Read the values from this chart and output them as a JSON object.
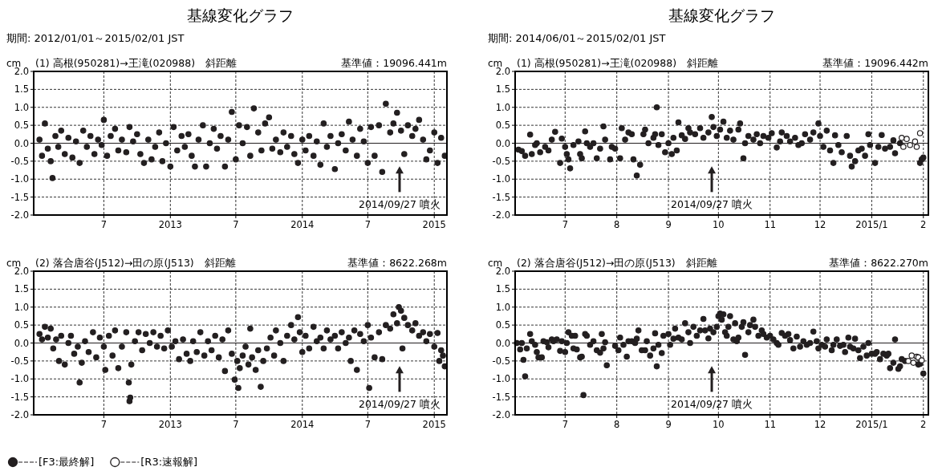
{
  "chart_data": [
    {
      "type": "scatter",
      "title": "基線変化グラフ",
      "subtitle": "期間: 2012/01/01～2015/02/01 JST",
      "ylabel": "cm",
      "annotations": [
        "(1) 高根(950281)→王滝(020988)　斜距離",
        "基準値：19096.441m"
      ],
      "xlim": [
        "2011-12-20",
        "2015-02-05"
      ],
      "xticks": [
        {
          "value": "2012-07-01",
          "label": "7"
        },
        {
          "value": "2013-01-01",
          "label": "2013"
        },
        {
          "value": "2013-07-01",
          "label": "7"
        },
        {
          "value": "2014-01-01",
          "label": "2014"
        },
        {
          "value": "2014-07-01",
          "label": "7"
        },
        {
          "value": "2015-01-01",
          "label": "2015"
        }
      ],
      "ylim": [
        -2,
        2
      ],
      "yticks": [
        {
          "value": 2,
          "label": "2.0"
        },
        {
          "value": 1.5,
          "label": "1.5"
        },
        {
          "value": 1,
          "label": "1.0"
        },
        {
          "value": 0.5,
          "label": "0.5"
        },
        {
          "value": 0,
          "label": "0.0"
        },
        {
          "value": -0.5,
          "label": "-0.5"
        },
        {
          "value": -1,
          "label": "-1.0"
        },
        {
          "value": -1.5,
          "label": "-1.5"
        },
        {
          "value": -2,
          "label": "-2.0"
        }
      ],
      "grid": true,
      "marker": "circle",
      "ref_lines": [
        {
          "axis": "y",
          "value": 0,
          "color": "#231f20"
        },
        {
          "axis": "x",
          "value": "2014-09-27",
          "label": "2014/09/27 噴火"
        }
      ],
      "series": [
        {
          "color": "#231f20",
          "x": [
            "2012-01-05",
            "2012-01-12",
            "2012-01-20",
            "2012-01-28",
            "2012-02-05",
            "2012-02-10",
            "2012-02-18",
            "2012-02-26",
            "2012-03-05",
            "2012-03-15",
            "2012-03-25",
            "2012-04-05",
            "2012-04-15",
            "2012-04-25",
            "2012-05-05",
            "2012-05-15",
            "2012-05-25",
            "2012-06-05",
            "2012-06-15",
            "2012-06-25",
            "2012-07-01",
            "2012-07-10",
            "2012-07-20",
            "2012-08-01",
            "2012-08-10",
            "2012-08-20",
            "2012-09-01",
            "2012-09-10",
            "2012-09-20",
            "2012-10-01",
            "2012-10-10",
            "2012-10-20",
            "2012-11-01",
            "2012-11-10",
            "2012-11-20",
            "2012-12-01",
            "2012-12-10",
            "2012-12-20",
            "2013-01-01",
            "2013-01-10",
            "2013-01-20",
            "2013-02-01",
            "2013-02-10",
            "2013-02-20",
            "2013-03-01",
            "2013-03-10",
            "2013-03-20",
            "2013-04-01",
            "2013-04-10",
            "2013-04-20",
            "2013-05-01",
            "2013-05-10",
            "2013-05-20",
            "2013-06-01",
            "2013-06-10",
            "2013-06-20",
            "2013-07-01",
            "2013-07-10",
            "2013-07-20",
            "2013-08-01",
            "2013-08-10",
            "2013-08-20",
            "2013-09-01",
            "2013-09-10",
            "2013-09-20",
            "2013-10-01",
            "2013-10-10",
            "2013-10-20",
            "2013-11-01",
            "2013-11-10",
            "2013-11-20",
            "2013-12-01",
            "2013-12-10",
            "2013-12-20",
            "2014-01-01",
            "2014-01-10",
            "2014-01-20",
            "2014-02-01",
            "2014-02-10",
            "2014-02-20",
            "2014-03-01",
            "2014-03-10",
            "2014-03-20",
            "2014-04-01",
            "2014-04-10",
            "2014-04-20",
            "2014-05-01",
            "2014-05-10",
            "2014-05-20",
            "2014-06-01",
            "2014-06-10",
            "2014-06-20",
            "2014-07-01",
            "2014-07-10",
            "2014-07-20",
            "2014-08-01",
            "2014-08-10",
            "2014-08-20",
            "2014-09-01",
            "2014-09-10",
            "2014-09-20",
            "2014-10-01",
            "2014-10-10",
            "2014-10-20",
            "2014-11-01",
            "2014-11-10",
            "2014-11-20",
            "2014-12-01",
            "2014-12-10",
            "2014-12-20",
            "2015-01-01",
            "2015-01-10",
            "2015-01-20",
            "2015-01-30"
          ],
          "values": [
            0.1,
            -0.35,
            0.55,
            -0.15,
            -0.5,
            -0.97,
            0.2,
            -0.1,
            0.35,
            -0.3,
            0.15,
            -0.4,
            0.05,
            -0.55,
            0.35,
            -0.1,
            0.2,
            -0.3,
            0.1,
            -0.05,
            0.65,
            -0.35,
            0.2,
            0.4,
            -0.2,
            0.1,
            -0.25,
            0.45,
            0.05,
            0.25,
            -0.3,
            -0.55,
            0.1,
            -0.45,
            -0.1,
            0.3,
            -0.5,
            0.0,
            -0.65,
            0.45,
            -0.2,
            0.2,
            -0.1,
            0.25,
            -0.35,
            -0.65,
            0.1,
            0.5,
            -0.65,
            0.0,
            0.4,
            -0.15,
            0.2,
            -0.65,
            0.1,
            0.87,
            -0.45,
            0.5,
            0.0,
            0.45,
            -0.35,
            0.97,
            0.3,
            -0.2,
            0.55,
            0.72,
            -0.15,
            0.1,
            -0.25,
            0.3,
            -0.1,
            0.2,
            -0.3,
            -0.55,
            0.1,
            -0.2,
            0.2,
            -0.35,
            0.05,
            -0.6,
            0.55,
            -0.1,
            0.2,
            -0.72,
            0.0,
            0.25,
            -0.2,
            0.6,
            0.1,
            -0.35,
            0.4,
            0.05,
            -0.55,
            0.45,
            -0.35,
            0.5,
            -0.8,
            1.1,
            0.3,
            0.55,
            0.85,
            0.35,
            -0.3,
            0.5,
            0.2,
            0.4,
            0.65,
            0.1,
            -0.45,
            -0.2,
            0.3,
            -0.55,
            0.15,
            -0.35
          ]
        }
      ]
    },
    {
      "type": "scatter",
      "title": "基線変化グラフ",
      "subtitle": "期間: 2014/06/01～2015/02/01 JST",
      "ylabel": "cm",
      "annotations": [
        "(1) 高根(950281)→王滝(020988)　斜距離",
        "基準値：19096.442m"
      ],
      "xlim": [
        "2014-06-01",
        "2015-02-04"
      ],
      "xticks": [
        {
          "value": "2014-07-01",
          "label": "7"
        },
        {
          "value": "2014-08-01",
          "label": "8"
        },
        {
          "value": "2014-09-01",
          "label": "9"
        },
        {
          "value": "2014-10-01",
          "label": "10"
        },
        {
          "value": "2014-11-01",
          "label": "11"
        },
        {
          "value": "2014-12-01",
          "label": "12"
        },
        {
          "value": "2015-01-01",
          "label": "2015/1"
        },
        {
          "value": "2015-02-01",
          "label": "2"
        }
      ],
      "ylim": [
        -2,
        2
      ],
      "yticks": [
        {
          "value": 2,
          "label": "2.0"
        },
        {
          "value": 1.5,
          "label": "1.5"
        },
        {
          "value": 1,
          "label": "1.0"
        },
        {
          "value": 0.5,
          "label": "0.5"
        },
        {
          "value": 0,
          "label": "0.0"
        },
        {
          "value": -0.5,
          "label": "-0.5"
        },
        {
          "value": -1,
          "label": "-1.0"
        },
        {
          "value": -1.5,
          "label": "-1.5"
        },
        {
          "value": -2,
          "label": "-2.0"
        }
      ],
      "grid": true,
      "marker": "circle",
      "ref_lines": [
        {
          "axis": "y",
          "value": 0,
          "color": "#231f20"
        },
        {
          "axis": "x",
          "value": "2014-09-27",
          "label": "2014/09/27 噴火"
        }
      ],
      "series": [
        {
          "color": "#231f20",
          "x": [
            "2014-06-03",
            "2014-06-05",
            "2014-06-07",
            "2014-06-10",
            "2014-06-11",
            "2014-06-13",
            "2014-06-14",
            "2014-06-16",
            "2014-06-19",
            "2014-06-21",
            "2014-06-23",
            "2014-06-25",
            "2014-06-28",
            "2014-06-29",
            "2014-07-01",
            "2014-07-02",
            "2014-07-03",
            "2014-07-04",
            "2014-07-06",
            "2014-07-09",
            "2014-07-10",
            "2014-07-11",
            "2014-07-13",
            "2014-07-14",
            "2014-07-16",
            "2014-07-18",
            "2014-07-20",
            "2014-07-22",
            "2014-07-24",
            "2014-07-25",
            "2014-07-28",
            "2014-07-29",
            "2014-07-31",
            "2014-08-03",
            "2014-08-04",
            "2014-08-06",
            "2014-08-08",
            "2014-08-10",
            "2014-08-11",
            "2014-08-13",
            "2014-08-15",
            "2014-08-17",
            "2014-08-18",
            "2014-08-20",
            "2014-08-23",
            "2014-08-24",
            "2014-08-25",
            "2014-08-26",
            "2014-08-28",
            "2014-08-30",
            "2014-09-01",
            "2014-09-03",
            "2014-09-04",
            "2014-09-06",
            "2014-09-07",
            "2014-09-09",
            "2014-09-11",
            "2014-09-13",
            "2014-09-14",
            "2014-09-17",
            "2014-09-20",
            "2014-09-22",
            "2014-09-25",
            "2014-09-27",
            "2014-09-28",
            "2014-09-30",
            "2014-10-02",
            "2014-10-04",
            "2014-10-06",
            "2014-10-08",
            "2014-10-10",
            "2014-10-13",
            "2014-10-14",
            "2014-10-16",
            "2014-10-17",
            "2014-10-19",
            "2014-10-22",
            "2014-10-24",
            "2014-10-26",
            "2014-10-28",
            "2014-10-31",
            "2014-11-02",
            "2014-11-05",
            "2014-11-07",
            "2014-11-08",
            "2014-11-11",
            "2014-11-13",
            "2014-11-16",
            "2014-11-18",
            "2014-11-20",
            "2014-11-22",
            "2014-11-25",
            "2014-11-27",
            "2014-11-30",
            "2014-12-01",
            "2014-12-03",
            "2014-12-05",
            "2014-12-07",
            "2014-12-09",
            "2014-12-10",
            "2014-12-12",
            "2014-12-14",
            "2014-12-17",
            "2014-12-19",
            "2014-12-20",
            "2014-12-22",
            "2014-12-24",
            "2014-12-26",
            "2014-12-28",
            "2014-12-30",
            "2014-12-31",
            "2015-01-03",
            "2015-01-05",
            "2015-01-07",
            "2015-01-09",
            "2015-01-12",
            "2015-01-14",
            "2015-01-15",
            "2015-01-18",
            "2015-01-30",
            "2015-01-31",
            "2015-02-01"
          ],
          "values": [
            -0.18,
            -0.22,
            -0.35,
            0.24,
            -0.3,
            -0.05,
            0.0,
            -0.25,
            -0.1,
            -0.2,
            0.1,
            0.32,
            -0.55,
            0.13,
            -0.1,
            -0.3,
            -0.45,
            -0.7,
            -0.05,
            0.05,
            -0.3,
            -0.42,
            0.33,
            0.0,
            -0.1,
            0.0,
            -0.42,
            -0.15,
            0.47,
            0.1,
            -0.45,
            -0.1,
            -0.15,
            -0.42,
            0.42,
            0.1,
            0.3,
            0.25,
            -0.45,
            -0.9,
            -0.6,
            0.25,
            0.38,
            0.0,
            0.15,
            0.25,
            1.0,
            -0.05,
            0.25,
            -0.25,
            0.0,
            -0.3,
            0.15,
            -0.2,
            0.58,
            0.22,
            0.12,
            0.42,
            0.3,
            0.25,
            0.42,
            0.15,
            0.3,
            0.73,
            0.45,
            0.2,
            0.38,
            0.6,
            0.15,
            0.35,
            0.1,
            0.38,
            0.55,
            -0.42,
            0.0,
            0.2,
            0.1,
            0.25,
            0.0,
            0.2,
            0.15,
            0.28,
            -0.12,
            0.05,
            0.3,
            0.2,
            0.05,
            0.15,
            -0.05,
            0.0,
            0.25,
            0.1,
            0.3,
            0.55,
            0.2,
            -0.1,
            0.35,
            -0.2,
            -0.55,
            0.22,
            -0.05,
            -0.25,
            0.2,
            -0.35,
            -0.65,
            -0.5,
            -0.2,
            -0.15,
            -0.35,
            0.25,
            -0.05,
            -0.55,
            -0.1,
            0.23,
            -0.15,
            -0.1,
            0.08,
            -0.28,
            0.0,
            -0.55,
            -0.45,
            -0.4
          ]
        },
        {
          "color": "#ffffff",
          "x": [
            "2015-01-19",
            "2015-01-20",
            "2015-01-22",
            "2015-01-24",
            "2015-01-27",
            "2015-01-28",
            "2015-01-30"
          ],
          "values": [
            0.15,
            -0.1,
            0.12,
            -0.05,
            0.05,
            -0.1,
            0.28
          ]
        }
      ]
    },
    {
      "type": "scatter",
      "ylabel": "cm",
      "annotations": [
        "(2) 落合唐谷(J512)→田の原(J513)　斜距離",
        "基準値：8622.268m"
      ],
      "xlim": [
        "2011-12-20",
        "2015-02-05"
      ],
      "xticks": [
        {
          "value": "2012-07-01",
          "label": "7"
        },
        {
          "value": "2013-01-01",
          "label": "2013"
        },
        {
          "value": "2013-07-01",
          "label": "7"
        },
        {
          "value": "2014-01-01",
          "label": "2014"
        },
        {
          "value": "2014-07-01",
          "label": "7"
        },
        {
          "value": "2015-01-01",
          "label": "2015"
        }
      ],
      "ylim": [
        -2,
        2
      ],
      "yticks": [
        {
          "value": 2,
          "label": "2.0"
        },
        {
          "value": 1.5,
          "label": "1.5"
        },
        {
          "value": 1,
          "label": "1.0"
        },
        {
          "value": 0.5,
          "label": "0.5"
        },
        {
          "value": 0,
          "label": "0.0"
        },
        {
          "value": -0.5,
          "label": "-0.5"
        },
        {
          "value": -1,
          "label": "-1.0"
        },
        {
          "value": -1.5,
          "label": "-1.5"
        },
        {
          "value": -2,
          "label": "-2.0"
        }
      ],
      "grid": true,
      "marker": "circle",
      "ref_lines": [
        {
          "axis": "y",
          "value": 0,
          "color": "#231f20"
        },
        {
          "axis": "x",
          "value": "2014-09-27",
          "label": "2014/09/27 噴火"
        }
      ],
      "series": [
        {
          "color": "#231f20",
          "x": [
            "2012-01-05",
            "2012-01-12",
            "2012-01-20",
            "2012-01-28",
            "2012-02-05",
            "2012-02-12",
            "2012-02-20",
            "2012-02-28",
            "2012-03-05",
            "2012-03-15",
            "2012-03-25",
            "2012-04-01",
            "2012-04-10",
            "2012-04-20",
            "2012-04-25",
            "2012-05-01",
            "2012-05-10",
            "2012-05-20",
            "2012-06-01",
            "2012-06-10",
            "2012-06-20",
            "2012-07-01",
            "2012-07-05",
            "2012-07-15",
            "2012-07-25",
            "2012-08-01",
            "2012-08-10",
            "2012-08-20",
            "2012-09-01",
            "2012-09-08",
            "2012-09-10",
            "2012-09-12",
            "2012-09-15",
            "2012-09-25",
            "2012-10-05",
            "2012-10-15",
            "2012-10-25",
            "2012-11-05",
            "2012-11-15",
            "2012-11-25",
            "2012-12-05",
            "2012-12-15",
            "2012-12-25",
            "2013-01-05",
            "2013-01-15",
            "2013-01-25",
            "2013-02-05",
            "2013-02-15",
            "2013-02-25",
            "2013-03-05",
            "2013-03-15",
            "2013-03-25",
            "2013-04-05",
            "2013-04-15",
            "2013-04-25",
            "2013-05-05",
            "2013-05-15",
            "2013-05-25",
            "2013-06-01",
            "2013-06-10",
            "2013-06-20",
            "2013-06-28",
            "2013-07-05",
            "2013-07-08",
            "2013-07-12",
            "2013-07-20",
            "2013-07-28",
            "2013-08-05",
            "2013-08-10",
            "2013-08-15",
            "2013-08-25",
            "2013-09-01",
            "2013-09-08",
            "2013-09-15",
            "2013-09-25",
            "2013-10-05",
            "2013-10-15",
            "2013-10-20",
            "2013-11-01",
            "2013-11-10",
            "2013-11-20",
            "2013-12-01",
            "2013-12-10",
            "2013-12-20",
            "2013-12-25",
            "2014-01-01",
            "2014-01-10",
            "2014-01-20",
            "2014-02-01",
            "2014-02-10",
            "2014-02-20",
            "2014-03-01",
            "2014-03-10",
            "2014-03-20",
            "2014-04-01",
            "2014-04-10",
            "2014-04-20",
            "2014-05-01",
            "2014-05-10",
            "2014-05-15",
            "2014-05-25",
            "2014-06-01",
            "2014-06-10",
            "2014-06-20",
            "2014-07-01",
            "2014-07-05",
            "2014-07-10",
            "2014-07-20",
            "2014-08-01",
            "2014-08-10",
            "2014-08-20",
            "2014-09-01",
            "2014-09-10",
            "2014-09-20",
            "2014-09-25",
            "2014-10-01",
            "2014-10-05",
            "2014-10-10",
            "2014-10-20",
            "2014-11-01",
            "2014-11-10",
            "2014-11-20",
            "2014-12-01",
            "2014-12-10",
            "2014-12-20",
            "2015-01-01",
            "2015-01-10",
            "2015-01-15",
            "2015-01-20",
            "2015-01-25",
            "2015-01-30"
          ],
          "values": [
            0.25,
            0.1,
            0.45,
            0.15,
            0.4,
            -0.15,
            0.1,
            -0.5,
            0.2,
            -0.6,
            0.0,
            0.2,
            -0.3,
            -0.1,
            -1.1,
            -0.55,
            0.05,
            -0.25,
            0.3,
            -0.4,
            0.15,
            -0.1,
            -0.75,
            0.2,
            -0.35,
            0.35,
            -0.7,
            -0.1,
            0.3,
            -1.1,
            -1.62,
            -1.52,
            -0.6,
            0.05,
            0.3,
            -0.2,
            0.25,
            0.0,
            0.3,
            -0.1,
            0.2,
            -0.15,
            0.35,
            -0.1,
            0.05,
            -0.45,
            0.1,
            -0.3,
            -0.5,
            0.05,
            -0.25,
            0.3,
            -0.35,
            0.05,
            -0.2,
            0.2,
            -0.4,
            0.1,
            -0.78,
            0.35,
            -0.3,
            -1.02,
            -0.5,
            -1.25,
            -0.7,
            -0.35,
            -0.1,
            -0.6,
            0.4,
            -0.4,
            -0.75,
            -0.2,
            -1.22,
            -0.5,
            -0.15,
            0.15,
            -0.35,
            0.35,
            0.0,
            -0.5,
            0.2,
            0.5,
            0.1,
            0.72,
            0.3,
            -0.25,
            0.2,
            -0.15,
            0.45,
            0.05,
            0.15,
            -0.15,
            0.35,
            0.1,
            0.2,
            -0.15,
            0.3,
            0.0,
            0.15,
            -0.5,
            0.35,
            -0.75,
            0.25,
            0.05,
            0.5,
            -1.25,
            0.15,
            -0.4,
            0.3,
            -0.45,
            0.5,
            0.4,
            0.8,
            0.55,
            1.0,
            0.9,
            -0.15,
            0.7,
            0.5,
            0.35,
            0.55,
            0.2,
            0.3,
            0.05,
            0.25,
            -0.1,
            0.28,
            -0.5,
            -0.2,
            -0.35,
            -0.65
          ]
        }
      ]
    },
    {
      "type": "scatter",
      "ylabel": "cm",
      "legend": "bottom left",
      "annotations": [
        "(2) 落合唐谷(J512)→田の原(J513)　斜距離",
        "基準値：8622.270m"
      ],
      "xlim": [
        "2014-06-01",
        "2015-02-04"
      ],
      "xticks": [
        {
          "value": "2014-07-01",
          "label": "7"
        },
        {
          "value": "2014-08-01",
          "label": "8"
        },
        {
          "value": "2014-09-01",
          "label": "9"
        },
        {
          "value": "2014-10-01",
          "label": "10"
        },
        {
          "value": "2014-11-01",
          "label": "11"
        },
        {
          "value": "2014-12-01",
          "label": "12"
        },
        {
          "value": "2015-01-01",
          "label": "2015/1"
        },
        {
          "value": "2015-02-01",
          "label": "2"
        }
      ],
      "ylim": [
        -2,
        2
      ],
      "yticks": [
        {
          "value": 2,
          "label": "2.0"
        },
        {
          "value": 1.5,
          "label": "1.5"
        },
        {
          "value": 1,
          "label": "1.0"
        },
        {
          "value": 0.5,
          "label": "0.5"
        },
        {
          "value": 0,
          "label": "0.0"
        },
        {
          "value": -0.5,
          "label": "-0.5"
        },
        {
          "value": -1,
          "label": "-1.0"
        },
        {
          "value": -1.5,
          "label": "-1.5"
        },
        {
          "value": -2,
          "label": "-2.0"
        }
      ],
      "grid": true,
      "marker": "circle",
      "ref_lines": [
        {
          "axis": "y",
          "value": 0,
          "color": "#231f20"
        },
        {
          "axis": "x",
          "value": "2014-09-27",
          "label": "2014/09/27 噴火"
        }
      ],
      "series": [
        {
          "name": "[F3:最終解]",
          "color": "#231f20",
          "x": [
            "2014-06-02",
            "2014-06-04",
            "2014-06-05",
            "2014-06-06",
            "2014-06-07",
            "2014-06-08",
            "2014-06-10",
            "2014-06-11",
            "2014-06-13",
            "2014-06-14",
            "2014-06-15",
            "2014-06-17",
            "2014-06-18",
            "2014-06-20",
            "2014-06-21",
            "2014-06-23",
            "2014-06-24",
            "2014-06-26",
            "2014-06-28",
            "2014-06-29",
            "2014-07-01",
            "2014-07-02",
            "2014-07-03",
            "2014-07-05",
            "2014-07-06",
            "2014-07-07",
            "2014-07-08",
            "2014-07-10",
            "2014-07-11",
            "2014-07-12",
            "2014-07-13",
            "2014-07-14",
            "2014-07-16",
            "2014-07-18",
            "2014-07-20",
            "2014-07-22",
            "2014-07-23",
            "2014-07-24",
            "2014-07-25",
            "2014-07-26",
            "2014-07-31",
            "2014-08-02",
            "2014-08-03",
            "2014-08-05",
            "2014-08-07",
            "2014-08-08",
            "2014-08-10",
            "2014-08-12",
            "2014-08-13",
            "2014-08-14",
            "2014-08-16",
            "2014-08-18",
            "2014-08-19",
            "2014-08-21",
            "2014-08-23",
            "2014-08-24",
            "2014-08-25",
            "2014-08-26",
            "2014-08-28",
            "2014-08-29",
            "2014-09-01",
            "2014-09-02",
            "2014-09-04",
            "2014-09-05",
            "2014-09-07",
            "2014-09-09",
            "2014-09-11",
            "2014-09-13",
            "2014-09-14",
            "2014-09-16",
            "2014-09-18",
            "2014-09-20",
            "2014-09-22",
            "2014-09-23",
            "2014-09-25",
            "2014-09-26",
            "2014-09-28",
            "2014-09-30",
            "2014-10-01",
            "2014-10-02",
            "2014-10-03",
            "2014-10-04",
            "2014-10-05",
            "2014-10-06",
            "2014-10-07",
            "2014-10-08",
            "2014-10-10",
            "2014-10-11",
            "2014-10-12",
            "2014-10-13",
            "2014-10-15",
            "2014-10-16",
            "2014-10-17",
            "2014-10-19",
            "2014-10-20",
            "2014-10-22",
            "2014-10-23",
            "2014-10-25",
            "2014-10-27",
            "2014-10-28",
            "2014-10-30",
            "2014-11-01",
            "2014-11-03",
            "2014-11-05",
            "2014-11-06",
            "2014-11-08",
            "2014-11-10",
            "2014-11-12",
            "2014-11-13",
            "2014-11-15",
            "2014-11-17",
            "2014-11-19",
            "2014-11-21",
            "2014-11-23",
            "2014-11-25",
            "2014-11-27",
            "2014-11-29",
            "2014-11-30",
            "2014-12-02",
            "2014-12-04",
            "2014-12-05",
            "2014-12-08",
            "2014-12-09",
            "2014-12-11",
            "2014-12-13",
            "2014-12-15",
            "2014-12-16",
            "2014-12-18",
            "2014-12-19",
            "2014-12-21",
            "2014-12-22",
            "2014-12-24",
            "2014-12-25",
            "2014-12-27",
            "2014-12-29",
            "2014-12-30",
            "2015-01-01",
            "2015-01-03",
            "2015-01-04",
            "2015-01-06",
            "2015-01-08",
            "2015-01-10",
            "2015-01-11",
            "2015-01-12",
            "2015-01-14",
            "2015-01-15",
            "2015-01-17",
            "2015-01-18",
            "2015-01-19",
            "2015-01-21",
            "2015-01-29",
            "2015-01-30",
            "2015-02-01"
          ],
          "values": [
            0.0,
            -0.18,
            0.0,
            -0.47,
            -0.93,
            -0.15,
            0.25,
            0.05,
            -0.05,
            -0.25,
            -0.4,
            -0.4,
            0.05,
            0.02,
            -0.12,
            0.1,
            0.05,
            0.1,
            -0.22,
            0.05,
            -0.25,
            0.0,
            0.3,
            0.2,
            -0.15,
            0.2,
            -0.18,
            -0.4,
            -0.38,
            -1.45,
            0.25,
            0.2,
            -0.05,
            0.05,
            -0.2,
            -0.27,
            0.25,
            -0.15,
            0.02,
            -0.62,
            -0.08,
            -0.2,
            0.15,
            -0.05,
            -0.38,
            0.05,
            0.05,
            0.0,
            0.12,
            0.35,
            -0.2,
            -0.2,
            0.05,
            -0.35,
            -0.15,
            0.27,
            -0.65,
            -0.05,
            -0.28,
            0.2,
            0.25,
            -0.05,
            0.12,
            0.4,
            0.15,
            0.1,
            0.55,
            0.3,
            0.0,
            0.45,
            0.2,
            0.35,
            0.67,
            0.35,
            0.13,
            0.4,
            0.3,
            0.45,
            0.75,
            0.82,
            0.65,
            0.8,
            0.3,
            0.2,
            0.45,
            0.75,
            0.1,
            0.55,
            0.05,
            0.15,
            0.45,
            0.58,
            -0.33,
            0.3,
            0.5,
            0.65,
            0.45,
            0.2,
            0.35,
            0.25,
            0.15,
            0.2,
            0.1,
            0.0,
            -0.05,
            0.28,
            0.2,
            0.25,
            0.08,
            -0.15,
            0.18,
            -0.1,
            0.05,
            -0.05,
            0.0,
            0.32,
            0.05,
            -0.15,
            -0.05,
            -0.1,
            0.1,
            -0.2,
            -0.05,
            0.1,
            -0.08,
            -0.05,
            -0.25,
            0.15,
            -0.1,
            -0.15,
            0.12,
            -0.2,
            -0.42,
            -0.1,
            -0.35,
            0.0,
            -0.3,
            -0.3,
            -0.25,
            -0.45,
            -0.3,
            -0.35,
            -0.3,
            -0.7,
            -0.55,
            0.1,
            -0.72,
            -0.65,
            -0.45,
            -0.5,
            -0.6,
            -0.58,
            -0.85
          ]
        },
        {
          "name": "[R3:速報解]",
          "color": "#ffffff",
          "x": [
            "2015-01-23",
            "2015-01-25",
            "2015-01-26",
            "2015-01-28",
            "2015-01-29",
            "2015-01-31"
          ],
          "values": [
            -0.5,
            -0.35,
            -0.55,
            -0.38,
            -0.4,
            -0.48
          ]
        }
      ]
    }
  ]
}
